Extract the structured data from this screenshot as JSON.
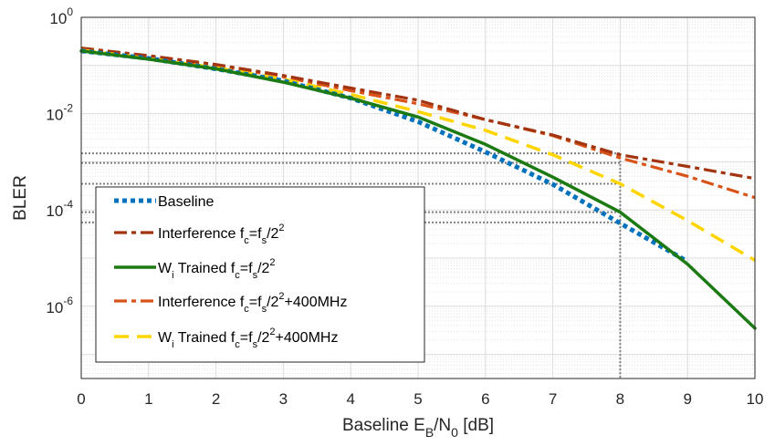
{
  "chart_data": {
    "type": "line",
    "title": "",
    "xlabel": "Baseline E_B/N_0 [dB]",
    "ylabel": "BLER",
    "xlim": [
      0,
      10
    ],
    "ylim_log10": [
      -7.5,
      0
    ],
    "yscale": "log",
    "grid": true,
    "minor_grid": true,
    "legend_position": "lower-left",
    "x_ticks": [
      "0",
      "1",
      "2",
      "3",
      "4",
      "5",
      "6",
      "7",
      "8",
      "9",
      "10"
    ],
    "y_ticks": [
      {
        "base": "10",
        "exp": "0",
        "value": 1
      },
      {
        "base": "10",
        "exp": "-2",
        "value": 0.01
      },
      {
        "base": "10",
        "exp": "-4",
        "value": 0.0001
      },
      {
        "base": "10",
        "exp": "-6",
        "value": 1e-06
      }
    ],
    "series": [
      {
        "name": "Baseline",
        "legend": {
          "main": "Baseline",
          "sub": "",
          "mid": "",
          "sup": "",
          "tail": ""
        },
        "color": "#0072BD",
        "dash": "dots",
        "x": [
          0,
          1,
          2,
          3,
          4,
          5,
          6,
          7,
          8,
          9
        ],
        "y": [
          0.2,
          0.14,
          0.085,
          0.048,
          0.021,
          0.0068,
          0.0016,
          0.00034,
          5.3e-05,
          8.5e-06
        ]
      },
      {
        "name": "Interference fc=fs/2^2",
        "legend": {
          "main": "Interference f",
          "sub": "c",
          "mid": "=f",
          "sub2": "s",
          "post": "/2",
          "sup": "2",
          "tail": ""
        },
        "color": "#A2340F",
        "dash": "dashdot",
        "x": [
          0,
          1,
          2,
          3,
          4,
          5,
          6,
          7,
          8,
          9,
          10
        ],
        "y": [
          0.23,
          0.16,
          0.105,
          0.062,
          0.034,
          0.019,
          0.0075,
          0.0036,
          0.0014,
          0.0008,
          0.00045
        ]
      },
      {
        "name": "Wi Trained fc=fs/2^2",
        "legend": {
          "main": "W",
          "sub": "i",
          "mid": " Trained f",
          "sub2": "c",
          "mid2": "=f",
          "sub3": "s",
          "post": "/2",
          "sup": "2",
          "tail": ""
        },
        "color": "#1B7A12",
        "dash": "solid",
        "x": [
          0,
          1,
          2,
          3,
          4,
          5,
          6,
          7,
          8,
          9,
          10
        ],
        "y": [
          0.2,
          0.135,
          0.085,
          0.045,
          0.021,
          0.0085,
          0.0023,
          0.00048,
          9e-05,
          7.5e-06,
          3.5e-07
        ]
      },
      {
        "name": "Interference fc=fs/2^2+400MHz",
        "legend": {
          "main": "Interference f",
          "sub": "c",
          "mid": "=f",
          "sub2": "s",
          "post": "/2",
          "sup": "2",
          "tail": "+400MHz"
        },
        "color": "#D95319",
        "dash": "dashdot",
        "x": [
          0,
          1,
          2,
          3,
          4,
          5,
          6,
          7,
          8,
          9,
          10
        ],
        "y": [
          0.22,
          0.15,
          0.1,
          0.058,
          0.03,
          0.016,
          0.0075,
          0.0035,
          0.0012,
          0.0005,
          0.00018
        ]
      },
      {
        "name": "Wi Trained fc=fs/2^2+400MHz",
        "legend": {
          "main": "W",
          "sub": "i",
          "mid": " Trained f",
          "sub2": "c",
          "mid2": "=f",
          "sub3": "s",
          "post": "/2",
          "sup": "2",
          "tail": "+400MHz"
        },
        "color": "#FFD500",
        "dash": "dashed",
        "x": [
          0,
          1,
          2,
          3,
          4,
          5,
          6,
          7,
          8,
          9,
          10
        ],
        "y": [
          0.21,
          0.14,
          0.09,
          0.052,
          0.025,
          0.011,
          0.0045,
          0.0014,
          0.00035,
          6e-05,
          9e-06
        ]
      }
    ],
    "reference_lines": {
      "horizontal_y": [
        0.0015,
        0.00095,
        0.00035,
        9e-05,
        5.5e-05
      ],
      "vertical_x": [
        8
      ],
      "color": "#808080",
      "style": "dotted"
    }
  }
}
